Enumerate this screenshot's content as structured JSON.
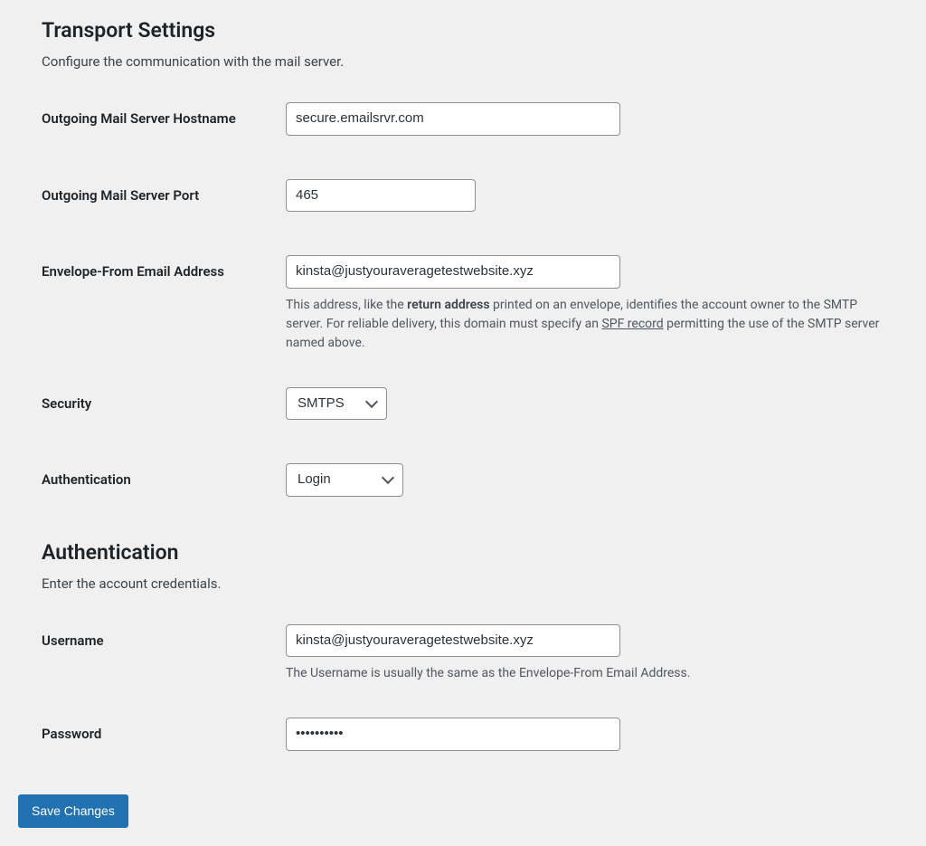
{
  "transport": {
    "title": "Transport Settings",
    "description": "Configure the communication with the mail server.",
    "hostname": {
      "label": "Outgoing Mail Server Hostname",
      "value": "secure.emailsrvr.com"
    },
    "port": {
      "label": "Outgoing Mail Server Port",
      "value": "465"
    },
    "envelope": {
      "label": "Envelope-From Email Address",
      "value": "kinsta@justyouraveragetestwebsite.xyz",
      "help_1": "This address, like the ",
      "help_bold": "return address",
      "help_2": " printed on an envelope, identifies the account owner to the SMTP server. For reliable delivery, this domain must specify an ",
      "help_underline": "SPF record",
      "help_3": " permitting the use of the SMTP server named above."
    },
    "security": {
      "label": "Security",
      "value": "SMTPS"
    },
    "authentication": {
      "label": "Authentication",
      "value": "Login"
    }
  },
  "auth_section": {
    "title": "Authentication",
    "description": "Enter the account credentials.",
    "username": {
      "label": "Username",
      "value": "kinsta@justyouraveragetestwebsite.xyz",
      "help": "The Username is usually the same as the Envelope-From Email Address."
    },
    "password": {
      "label": "Password",
      "value": "••••••••••"
    }
  },
  "submit": {
    "label": "Save Changes"
  }
}
